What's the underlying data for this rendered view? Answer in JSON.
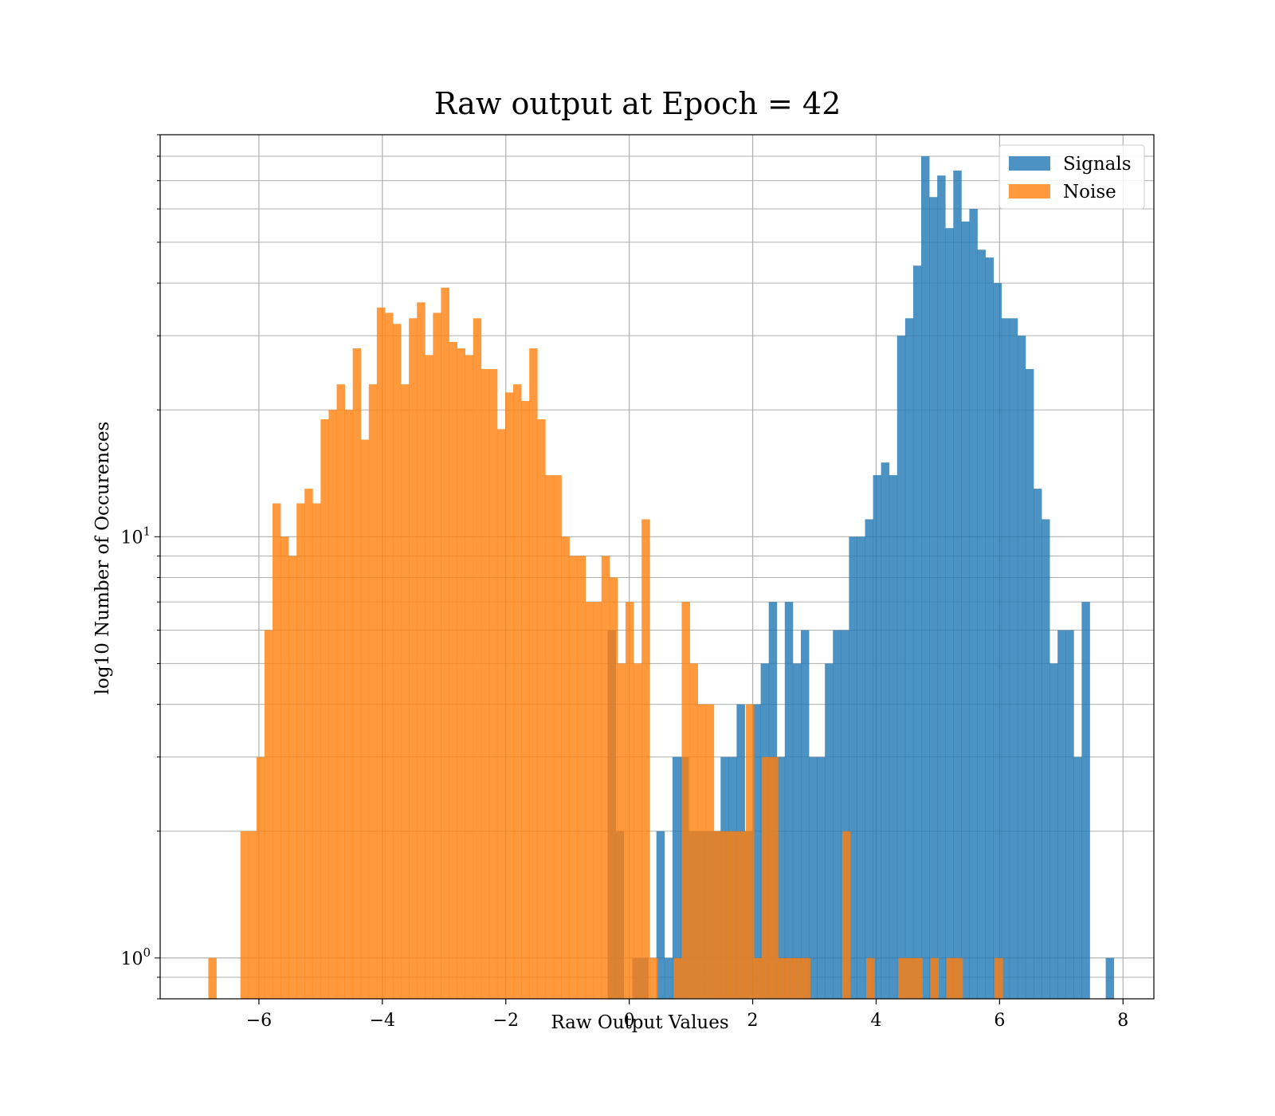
{
  "chart_data": {
    "type": "bar",
    "title": "Raw output at Epoch = 42",
    "xlabel": "Raw Output Values",
    "ylabel": "log10 Number of Occurences",
    "yscale": "log",
    "xlim": [
      -7.6,
      8.5
    ],
    "ylim": [
      0.8,
      90
    ],
    "grid": true,
    "legend_position": "top-right",
    "x_ticks": [
      {
        "value": -6,
        "label": "−6"
      },
      {
        "value": -4,
        "label": "−4"
      },
      {
        "value": -2,
        "label": "−2"
      },
      {
        "value": 0,
        "label": "0"
      },
      {
        "value": 2,
        "label": "2"
      },
      {
        "value": 4,
        "label": "4"
      },
      {
        "value": 6,
        "label": "6"
      },
      {
        "value": 8,
        "label": "8"
      }
    ],
    "y_ticks": [
      {
        "value": 1,
        "base": "10",
        "exp": "0"
      },
      {
        "value": 10,
        "base": "10",
        "exp": "1"
      }
    ],
    "bin_width": 0.13,
    "series": [
      {
        "name": "Signals",
        "color": "#1f77b4",
        "bins": [
          [
            -0.35,
            6
          ],
          [
            -0.22,
            2
          ],
          [
            0.05,
            1
          ],
          [
            0.18,
            1
          ],
          [
            0.44,
            2
          ],
          [
            0.57,
            1
          ],
          [
            0.7,
            3
          ],
          [
            0.83,
            3
          ],
          [
            0.96,
            2
          ],
          [
            1.09,
            2
          ],
          [
            1.22,
            2
          ],
          [
            1.35,
            2
          ],
          [
            1.48,
            3
          ],
          [
            1.61,
            3
          ],
          [
            1.74,
            4
          ],
          [
            1.87,
            2
          ],
          [
            2.0,
            4
          ],
          [
            2.13,
            5
          ],
          [
            2.26,
            7
          ],
          [
            2.39,
            3
          ],
          [
            2.52,
            7
          ],
          [
            2.65,
            5
          ],
          [
            2.78,
            6
          ],
          [
            2.91,
            3
          ],
          [
            3.04,
            3
          ],
          [
            3.17,
            5
          ],
          [
            3.3,
            6
          ],
          [
            3.43,
            6
          ],
          [
            3.56,
            10
          ],
          [
            3.69,
            10
          ],
          [
            3.82,
            11
          ],
          [
            3.95,
            14
          ],
          [
            4.08,
            15
          ],
          [
            4.21,
            14
          ],
          [
            4.34,
            30
          ],
          [
            4.47,
            33
          ],
          [
            4.6,
            44
          ],
          [
            4.73,
            80
          ],
          [
            4.86,
            64
          ],
          [
            4.99,
            72
          ],
          [
            5.12,
            54
          ],
          [
            5.25,
            74
          ],
          [
            5.38,
            56
          ],
          [
            5.51,
            60
          ],
          [
            5.64,
            48
          ],
          [
            5.77,
            46
          ],
          [
            5.9,
            40
          ],
          [
            6.03,
            33
          ],
          [
            6.16,
            33
          ],
          [
            6.29,
            30
          ],
          [
            6.42,
            25
          ],
          [
            6.55,
            13
          ],
          [
            6.68,
            11
          ],
          [
            6.81,
            5
          ],
          [
            6.94,
            6
          ],
          [
            7.07,
            6
          ],
          [
            7.2,
            3
          ],
          [
            7.33,
            7
          ],
          [
            7.46,
            0
          ],
          [
            7.72,
            1
          ]
        ]
      },
      {
        "name": "Noise",
        "color": "#ff7f0e",
        "bins": [
          [
            -6.82,
            1
          ],
          [
            -6.3,
            2
          ],
          [
            -6.17,
            2
          ],
          [
            -6.04,
            3
          ],
          [
            -5.91,
            6
          ],
          [
            -5.78,
            12
          ],
          [
            -5.65,
            10
          ],
          [
            -5.52,
            9
          ],
          [
            -5.39,
            12
          ],
          [
            -5.26,
            13
          ],
          [
            -5.13,
            12
          ],
          [
            -5.0,
            19
          ],
          [
            -4.87,
            20
          ],
          [
            -4.74,
            23
          ],
          [
            -4.61,
            20
          ],
          [
            -4.48,
            28
          ],
          [
            -4.35,
            17
          ],
          [
            -4.22,
            23
          ],
          [
            -4.09,
            35
          ],
          [
            -3.96,
            34
          ],
          [
            -3.83,
            32
          ],
          [
            -3.7,
            23
          ],
          [
            -3.57,
            33
          ],
          [
            -3.44,
            36
          ],
          [
            -3.31,
            27
          ],
          [
            -3.18,
            34
          ],
          [
            -3.05,
            39
          ],
          [
            -2.92,
            29
          ],
          [
            -2.79,
            28
          ],
          [
            -2.66,
            27
          ],
          [
            -2.53,
            33
          ],
          [
            -2.4,
            25
          ],
          [
            -2.27,
            25
          ],
          [
            -2.14,
            18
          ],
          [
            -2.01,
            22
          ],
          [
            -1.88,
            23
          ],
          [
            -1.75,
            21
          ],
          [
            -1.62,
            28
          ],
          [
            -1.49,
            19
          ],
          [
            -1.36,
            14
          ],
          [
            -1.23,
            14
          ],
          [
            -1.1,
            10
          ],
          [
            -0.97,
            9
          ],
          [
            -0.84,
            9
          ],
          [
            -0.71,
            7
          ],
          [
            -0.58,
            7
          ],
          [
            -0.45,
            9
          ],
          [
            -0.32,
            8
          ],
          [
            -0.19,
            5
          ],
          [
            -0.06,
            7
          ],
          [
            0.07,
            5
          ],
          [
            0.2,
            11
          ],
          [
            0.33,
            1
          ],
          [
            0.46,
            0
          ],
          [
            0.59,
            0
          ],
          [
            0.72,
            1
          ],
          [
            0.85,
            7
          ],
          [
            0.98,
            5
          ],
          [
            1.11,
            4
          ],
          [
            1.24,
            4
          ],
          [
            1.37,
            2
          ],
          [
            1.5,
            2
          ],
          [
            1.63,
            2
          ],
          [
            1.76,
            2
          ],
          [
            1.89,
            4
          ],
          [
            2.02,
            1
          ],
          [
            2.15,
            3
          ],
          [
            2.28,
            3
          ],
          [
            2.41,
            1
          ],
          [
            2.54,
            1
          ],
          [
            2.67,
            1
          ],
          [
            2.8,
            1
          ],
          [
            2.93,
            0
          ],
          [
            3.06,
            0
          ],
          [
            3.19,
            0
          ],
          [
            3.32,
            0
          ],
          [
            3.45,
            2
          ],
          [
            3.58,
            0
          ],
          [
            3.71,
            0
          ],
          [
            3.84,
            1
          ],
          [
            3.97,
            0
          ],
          [
            4.1,
            0
          ],
          [
            4.23,
            0
          ],
          [
            4.36,
            1
          ],
          [
            4.49,
            1
          ],
          [
            4.62,
            1
          ],
          [
            4.75,
            0
          ],
          [
            4.88,
            1
          ],
          [
            5.01,
            0
          ],
          [
            5.14,
            1
          ],
          [
            5.27,
            1
          ],
          [
            5.4,
            0
          ],
          [
            5.53,
            0
          ],
          [
            5.66,
            0
          ],
          [
            5.79,
            0
          ],
          [
            5.92,
            1
          ]
        ]
      }
    ]
  }
}
